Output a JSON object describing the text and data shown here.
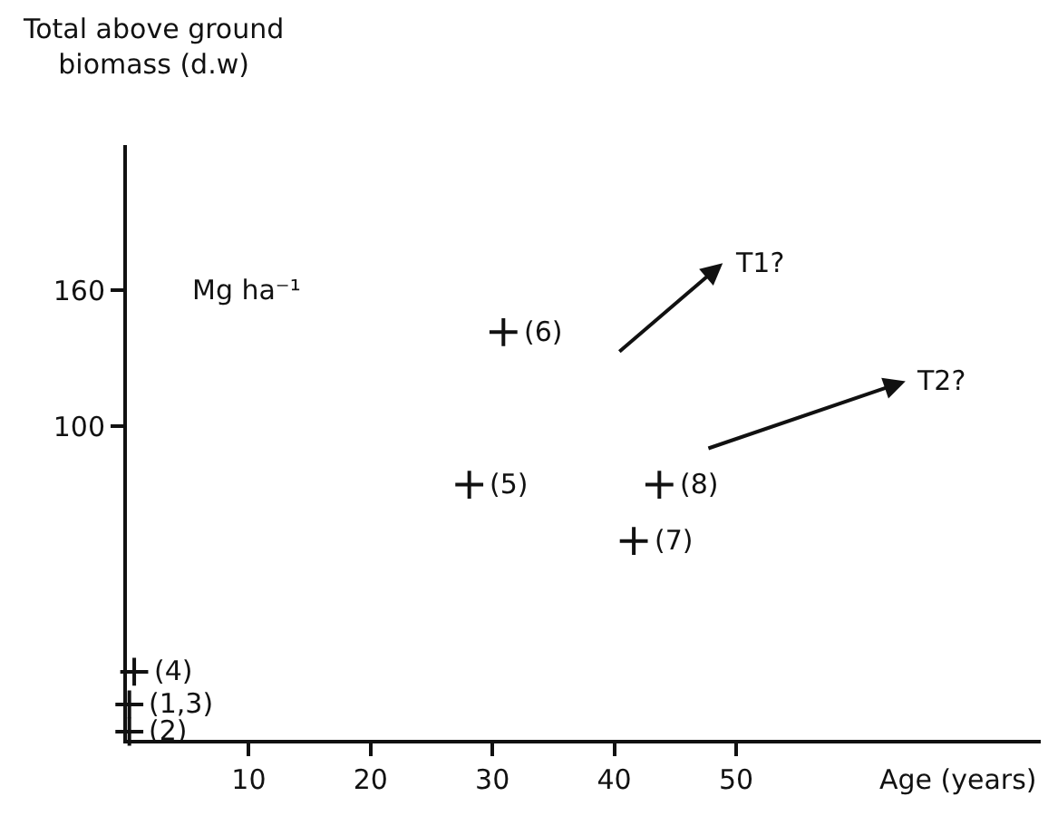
{
  "chart_data": {
    "type": "scatter",
    "ylabel": "Total above ground biomass (d.w)",
    "xlabel": "Age (years)",
    "xlim": [
      0,
      75
    ],
    "xticks": [
      10,
      20,
      30,
      40,
      50
    ],
    "ylim": [
      -38,
      224
    ],
    "yticks": [
      100,
      160
    ],
    "series": [
      {
        "color": "#111111",
        "marker": "cross",
        "x": [
          0.2,
          0.2,
          0.6,
          28.1,
          30.9,
          41.6,
          43.7
        ],
        "values": [
          -22.4,
          -34.4,
          -8,
          74.4,
          141.6,
          49.6,
          74.4
        ]
      }
    ],
    "annotations": [
      "Mg ha⁻¹",
      "T1?",
      "T2?",
      {
        "text": "(1,3)",
        "x": 0.2,
        "y": -22.4
      },
      {
        "text": "(2)",
        "x": 0.2,
        "y": -34.4
      },
      {
        "text": "(4)",
        "x": 0.6,
        "y": -8
      },
      {
        "text": "(5)",
        "x": 28.1,
        "y": 74.4
      },
      {
        "text": "(6)",
        "x": 30.9,
        "y": 141.6
      },
      {
        "text": "(7)",
        "x": 41.6,
        "y": 49.6
      },
      {
        "text": "(8)",
        "x": 43.7,
        "y": 74.4
      }
    ]
  }
}
